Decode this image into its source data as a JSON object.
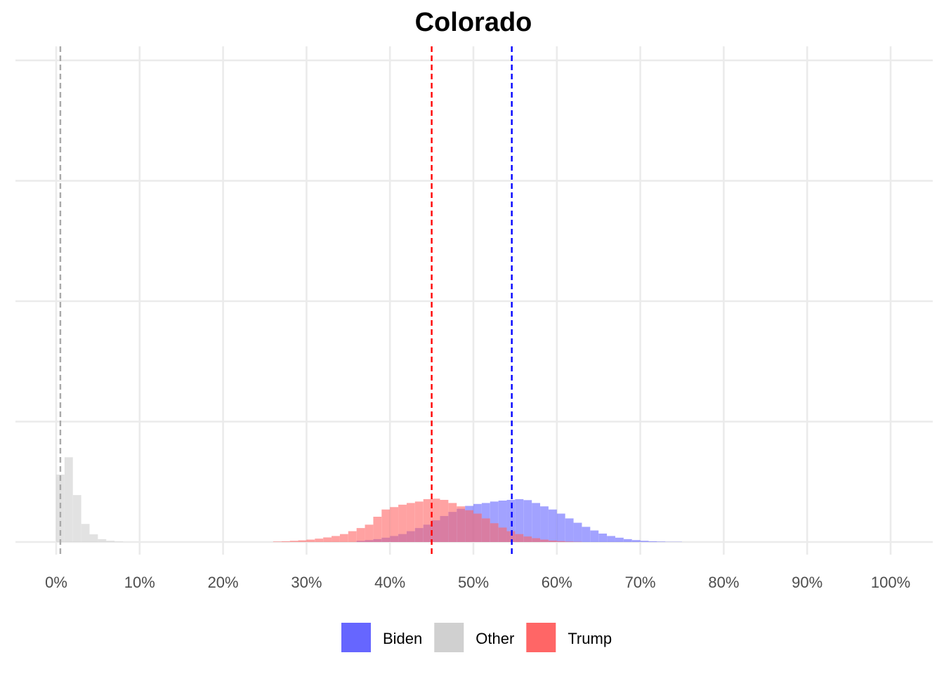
{
  "chart_data": {
    "type": "histogram",
    "title": "Colorado",
    "xlabel": "",
    "ylabel": "",
    "xlim": [
      -0.5,
      102
    ],
    "ylim": [
      0,
      0.18
    ],
    "x_ticks": [
      0,
      10,
      20,
      30,
      40,
      50,
      60,
      70,
      80,
      90,
      100
    ],
    "x_tick_labels": [
      "0%",
      "10%",
      "20%",
      "30%",
      "40%",
      "50%",
      "60%",
      "70%",
      "80%",
      "90%",
      "100%"
    ],
    "y_gridlines": [
      0,
      0.05,
      0.1,
      0.15,
      0.2
    ],
    "grid": true,
    "bin_width": 1,
    "legend_position": "bottom",
    "series": [
      {
        "name": "Biden",
        "color": "#6666ff",
        "mean_line_color": "#0000ff",
        "mean": 54.6,
        "bins_start": [
          36,
          37,
          38,
          39,
          40,
          41,
          42,
          43,
          44,
          45,
          46,
          47,
          48,
          49,
          50,
          51,
          52,
          53,
          54,
          55,
          56,
          57,
          58,
          59,
          60,
          61,
          62,
          63,
          64,
          65,
          66,
          67,
          68,
          69,
          70,
          71,
          72,
          73,
          74
        ],
        "density": [
          0.0005,
          0.0008,
          0.0012,
          0.0018,
          0.0025,
          0.0033,
          0.0045,
          0.0058,
          0.0072,
          0.009,
          0.0108,
          0.0125,
          0.0138,
          0.015,
          0.0158,
          0.0162,
          0.0168,
          0.0172,
          0.0175,
          0.0178,
          0.0174,
          0.0162,
          0.0148,
          0.0135,
          0.0118,
          0.0098,
          0.008,
          0.0063,
          0.0048,
          0.0035,
          0.0025,
          0.0018,
          0.0012,
          0.0008,
          0.0005,
          0.0003,
          0.0002,
          0.0001,
          0.0001
        ]
      },
      {
        "name": "Other",
        "color": "#d0d0d0",
        "mean_line_color": "#a9a9a9",
        "mean": 0.5,
        "bins_start": [
          0,
          1,
          2,
          3,
          4,
          5,
          6,
          7
        ],
        "density": [
          0.028,
          0.0352,
          0.0195,
          0.0075,
          0.0032,
          0.0012,
          0.0005,
          0.0002
        ]
      },
      {
        "name": "Trump",
        "color": "#ff6666",
        "mean_line_color": "#ff0000",
        "mean": 45.0,
        "bins_start": [
          26,
          27,
          28,
          29,
          30,
          31,
          32,
          33,
          34,
          35,
          36,
          37,
          38,
          39,
          40,
          41,
          42,
          43,
          44,
          45,
          46,
          47,
          48,
          49,
          50,
          51,
          52,
          53,
          54,
          55,
          56,
          57,
          58,
          59,
          60,
          61,
          62
        ],
        "density": [
          0.0002,
          0.0003,
          0.0005,
          0.0007,
          0.001,
          0.0014,
          0.0019,
          0.0025,
          0.0033,
          0.0045,
          0.0058,
          0.0072,
          0.0105,
          0.0135,
          0.0145,
          0.0155,
          0.0162,
          0.0168,
          0.0178,
          0.018,
          0.0175,
          0.0162,
          0.0148,
          0.0132,
          0.0118,
          0.0098,
          0.0078,
          0.006,
          0.0045,
          0.0033,
          0.0023,
          0.0016,
          0.001,
          0.0006,
          0.0004,
          0.0002,
          0.0001
        ]
      }
    ]
  }
}
